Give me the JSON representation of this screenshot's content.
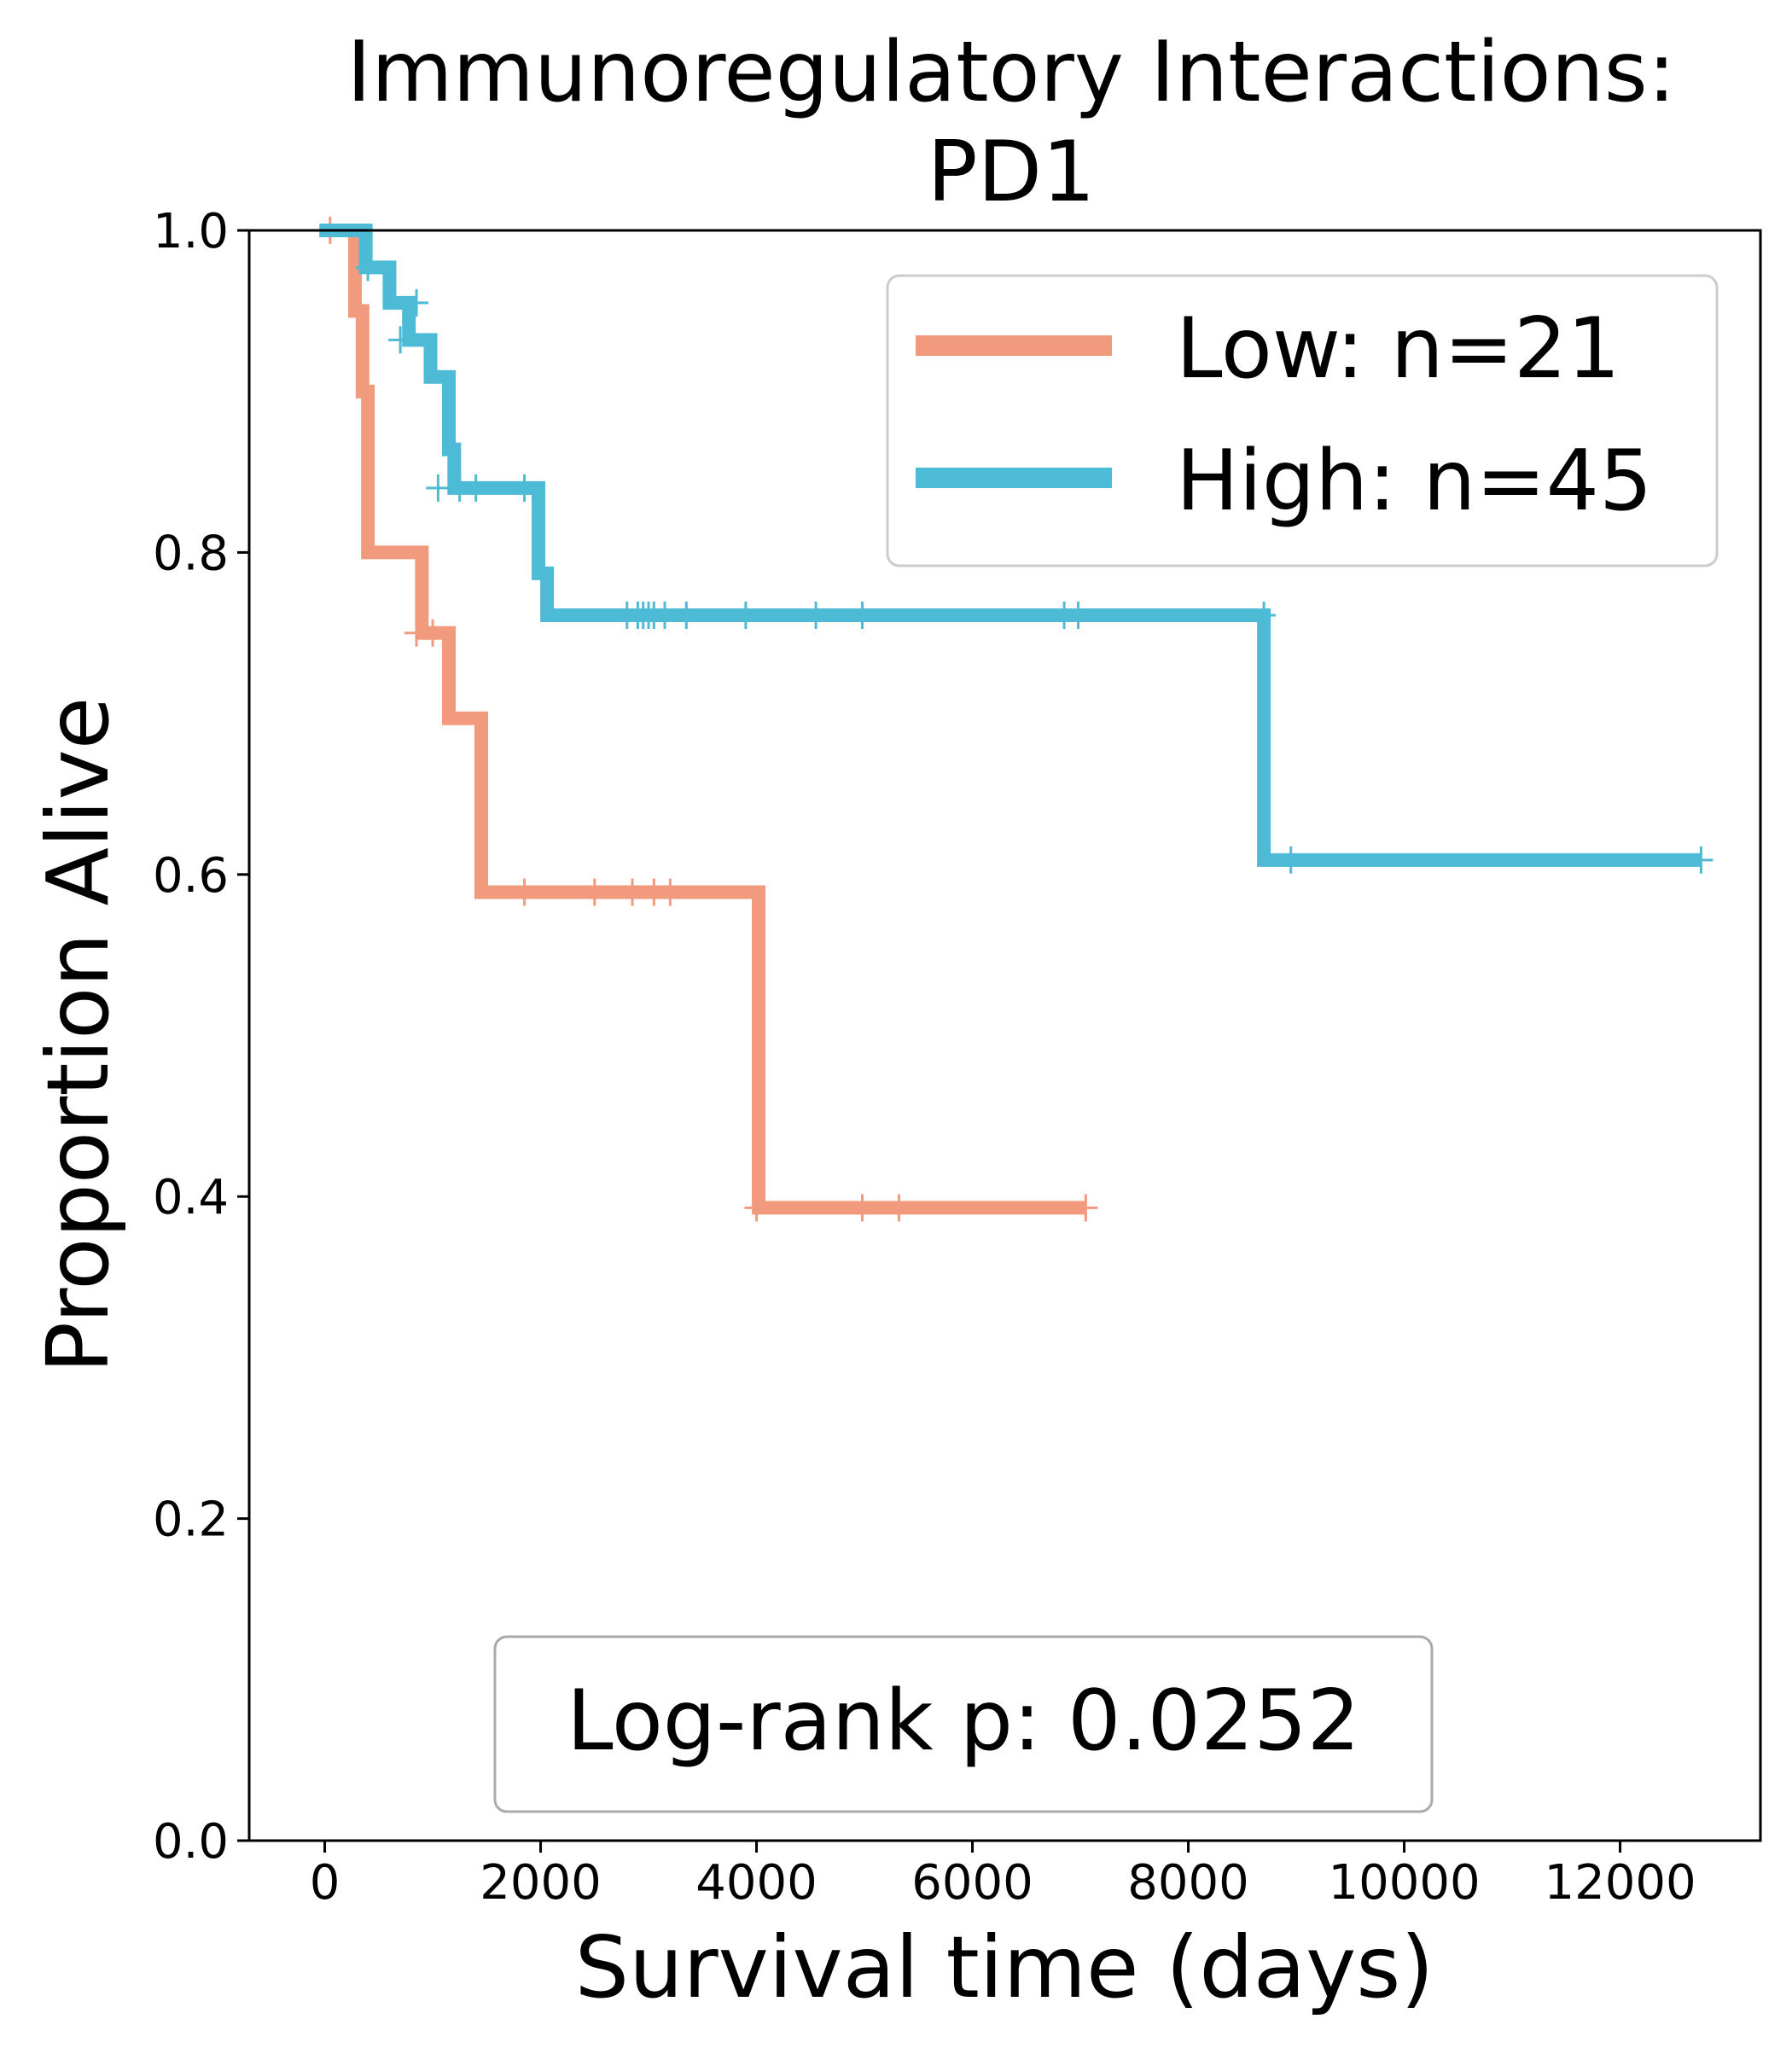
{
  "chart_data": {
    "type": "line",
    "title": "Immunoregulatory Interactions:\nPD1",
    "xlabel": "Survival time (days)",
    "ylabel": "Proportion Alive",
    "xlim": [
      -700,
      13300
    ],
    "ylim": [
      0.0,
      1.0
    ],
    "xticks": [
      0,
      2000,
      4000,
      6000,
      8000,
      10000,
      12000
    ],
    "yticks": [
      0.0,
      0.2,
      0.4,
      0.6,
      0.8,
      1.0
    ],
    "xtick_labels": [
      "0",
      "2000",
      "4000",
      "6000",
      "8000",
      "10000",
      "12000"
    ],
    "ytick_labels": [
      "0.0",
      "0.2",
      "0.4",
      "0.6",
      "0.8",
      "1.0"
    ],
    "grid": false,
    "legend_position": "top-right",
    "annotation": "Log-rank p: 0.0252",
    "series": [
      {
        "name": "Low: n=21",
        "color": "#F29A7D",
        "steps": [
          [
            0,
            1.0
          ],
          [
            280,
            0.95
          ],
          [
            350,
            0.9
          ],
          [
            400,
            0.8
          ],
          [
            900,
            0.75
          ],
          [
            1150,
            0.697
          ],
          [
            1450,
            0.589
          ],
          [
            4020,
            0.393
          ],
          [
            7050,
            0.393
          ]
        ],
        "censored": [
          [
            50,
            1.0
          ],
          [
            850,
            0.75
          ],
          [
            1000,
            0.75
          ],
          [
            1850,
            0.589
          ],
          [
            2500,
            0.589
          ],
          [
            2850,
            0.589
          ],
          [
            3050,
            0.589
          ],
          [
            3200,
            0.589
          ],
          [
            4000,
            0.393
          ],
          [
            4980,
            0.393
          ],
          [
            5320,
            0.393
          ],
          [
            7050,
            0.393
          ]
        ]
      },
      {
        "name": "High: n=45",
        "color": "#4DBBD5",
        "steps": [
          [
            -50,
            1.0
          ],
          [
            380,
            0.977
          ],
          [
            600,
            0.955
          ],
          [
            780,
            0.932
          ],
          [
            980,
            0.909
          ],
          [
            1150,
            0.864
          ],
          [
            1200,
            0.84
          ],
          [
            1980,
            0.787
          ],
          [
            2060,
            0.761
          ],
          [
            8700,
            0.609
          ],
          [
            12750,
            0.609
          ]
        ],
        "censored": [
          [
            400,
            0.977
          ],
          [
            700,
            0.932
          ],
          [
            850,
            0.955
          ],
          [
            1050,
            0.84
          ],
          [
            1250,
            0.84
          ],
          [
            1400,
            0.84
          ],
          [
            1850,
            0.84
          ],
          [
            2800,
            0.761
          ],
          [
            2900,
            0.761
          ],
          [
            2950,
            0.761
          ],
          [
            3000,
            0.761
          ],
          [
            3050,
            0.761
          ],
          [
            3150,
            0.761
          ],
          [
            3350,
            0.761
          ],
          [
            3900,
            0.761
          ],
          [
            4550,
            0.761
          ],
          [
            4980,
            0.761
          ],
          [
            6850,
            0.761
          ],
          [
            6980,
            0.761
          ],
          [
            8700,
            0.761
          ],
          [
            8950,
            0.609
          ],
          [
            12750,
            0.609
          ]
        ]
      }
    ]
  }
}
